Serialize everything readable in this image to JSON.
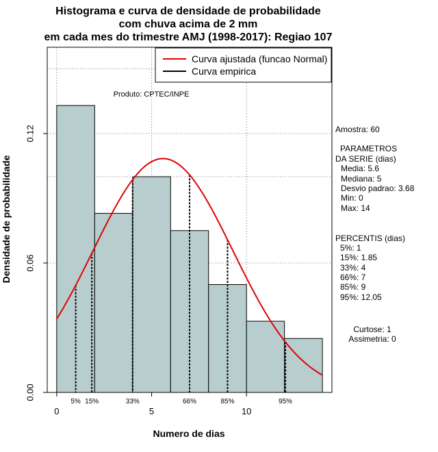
{
  "chart_data": {
    "type": "bar",
    "title_lines": [
      "Histograma e curva de densidade de probabilidade",
      "com chuva acima de 2 mm",
      "em cada mes do trimestre AMJ (1998-2017): Regiao 107"
    ],
    "xlabel": "Numero de dias",
    "ylabel": "Densidade de probabilidade",
    "xlim": [
      -0.5,
      14.5
    ],
    "ylim": [
      0,
      0.16
    ],
    "x_ticks": [
      0,
      5,
      10
    ],
    "x_tick_labels": [
      "0",
      "5",
      "10"
    ],
    "y_ticks": [
      0.0,
      0.06,
      0.12
    ],
    "y_tick_labels": [
      "0.00",
      "0.06",
      "0.12"
    ],
    "grid_x": [
      0,
      5,
      10
    ],
    "grid_y": [
      0.0,
      0.06,
      0.12,
      0.1
    ],
    "bins": [
      {
        "start": 0,
        "end": 2,
        "density": 0.133
      },
      {
        "start": 2,
        "end": 4,
        "density": 0.083
      },
      {
        "start": 4,
        "end": 6,
        "density": 0.1
      },
      {
        "start": 6,
        "end": 8,
        "density": 0.075
      },
      {
        "start": 8,
        "end": 10,
        "density": 0.05
      },
      {
        "start": 10,
        "end": 12,
        "density": 0.033
      },
      {
        "start": 12,
        "end": 14,
        "density": 0.025
      }
    ],
    "bar_color": "#b8cece",
    "normal_curve": {
      "mean": 5.6,
      "sd": 3.68,
      "x_from": 0,
      "x_to": 14,
      "color": "#e00000"
    },
    "percentile_lines": [
      {
        "label": "5%",
        "x": 1
      },
      {
        "label": "15%",
        "x": 1.85
      },
      {
        "label": "33%",
        "x": 4
      },
      {
        "label": "66%",
        "x": 7
      },
      {
        "label": "85%",
        "x": 9
      },
      {
        "label": "95%",
        "x": 12.05
      }
    ],
    "legend": {
      "position": "top-right",
      "entries": [
        {
          "label": "Curva ajustada (funcao Normal)",
          "color": "#e00000"
        },
        {
          "label": "Curva empirica",
          "color": "#000000"
        }
      ]
    },
    "product_label": "Produto: CPTEC/INPE",
    "side_stats": {
      "amostra": "Amostra: 60",
      "param_title_1": "PARAMETROS",
      "param_title_2": "DA SERIE (dias)",
      "params": [
        "Media: 5.6",
        "Mediana: 5",
        "Desvio padrao: 3.68",
        "Min: 0",
        "Max: 14"
      ],
      "perc_title": "PERCENTIS (dias)",
      "percentis": [
        "5%: 1",
        "15%: 1.85",
        "33%: 4",
        "66%: 7",
        "85%: 9",
        "95%: 12.05"
      ],
      "curtose": "Curtose: 1",
      "assimetria": "Assimetria: 0"
    }
  }
}
